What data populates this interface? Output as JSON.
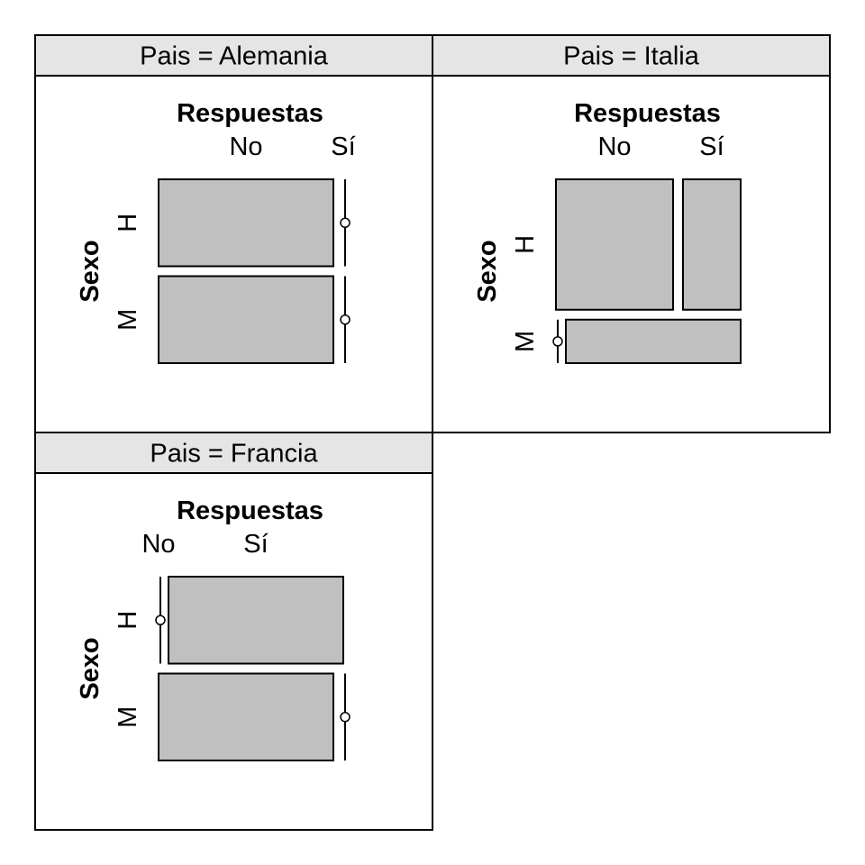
{
  "chart_data": {
    "type": "mosaic",
    "row_variable": "Sexo",
    "column_variable": "Respuestas",
    "row_levels": [
      "H",
      "M"
    ],
    "column_levels": [
      "No",
      "Sí"
    ],
    "fill_color": "#c0c0c0",
    "strip_color": "#e5e5e5",
    "panels": [
      {
        "strip": "Pais = Alemania",
        "row_proportions": [
          0.5,
          0.5
        ],
        "cell_proportions": [
          [
            1.0,
            0.0
          ],
          [
            1.0,
            0.0
          ]
        ]
      },
      {
        "strip": "Pais = Italia",
        "row_proportions": [
          0.75,
          0.25
        ],
        "cell_proportions": [
          [
            0.67,
            0.33
          ],
          [
            0.0,
            1.0
          ]
        ]
      },
      {
        "strip": "Pais = Francia",
        "row_proportions": [
          0.5,
          0.5
        ],
        "cell_proportions": [
          [
            0.0,
            1.0
          ],
          [
            1.0,
            0.0
          ]
        ]
      }
    ]
  }
}
